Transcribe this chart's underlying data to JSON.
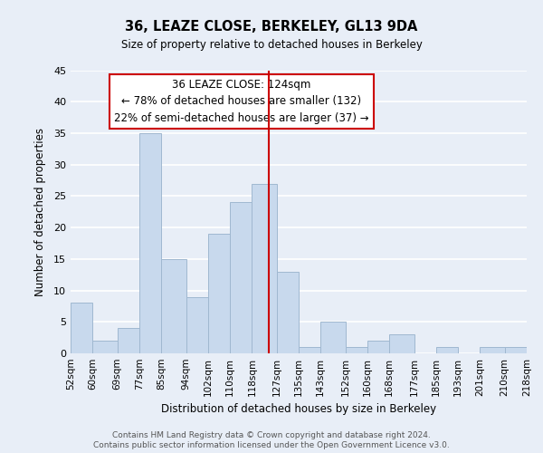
{
  "title": "36, LEAZE CLOSE, BERKELEY, GL13 9DA",
  "subtitle": "Size of property relative to detached houses in Berkeley",
  "xlabel": "Distribution of detached houses by size in Berkeley",
  "ylabel": "Number of detached properties",
  "bar_color": "#c8d9ed",
  "bar_edge_color": "#a0b8d0",
  "background_color": "#e8eef7",
  "plot_bg_color": "#e8eef7",
  "grid_color": "#ffffff",
  "vline_value": 124,
  "vline_color": "#cc0000",
  "bin_edges": [
    52,
    60,
    69,
    77,
    85,
    94,
    102,
    110,
    118,
    127,
    135,
    143,
    152,
    160,
    168,
    177,
    185,
    193,
    201,
    210,
    218
  ],
  "bin_labels": [
    "52sqm",
    "60sqm",
    "69sqm",
    "77sqm",
    "85sqm",
    "94sqm",
    "102sqm",
    "110sqm",
    "118sqm",
    "127sqm",
    "135sqm",
    "143sqm",
    "152sqm",
    "160sqm",
    "168sqm",
    "177sqm",
    "185sqm",
    "193sqm",
    "201sqm",
    "210sqm",
    "218sqm"
  ],
  "counts": [
    8,
    2,
    4,
    35,
    15,
    9,
    19,
    24,
    27,
    13,
    1,
    5,
    1,
    2,
    3,
    0,
    1,
    0,
    1,
    1
  ],
  "ylim": [
    0,
    45
  ],
  "yticks": [
    0,
    5,
    10,
    15,
    20,
    25,
    30,
    35,
    40,
    45
  ],
  "annotation_line1": "36 LEAZE CLOSE: 124sqm",
  "annotation_line2": "← 78% of detached houses are smaller (132)",
  "annotation_line3": "22% of semi-detached houses are larger (37) →",
  "annotation_box_facecolor": "#ffffff",
  "annotation_box_edgecolor": "#cc0000",
  "footer1": "Contains HM Land Registry data © Crown copyright and database right 2024.",
  "footer2": "Contains public sector information licensed under the Open Government Licence v3.0."
}
